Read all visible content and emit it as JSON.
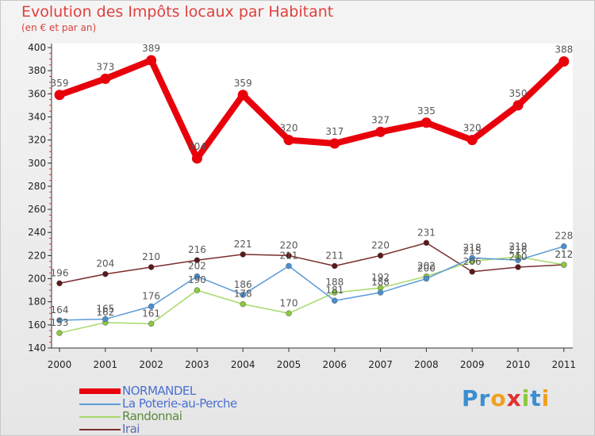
{
  "title": "Evolution des Impôts locaux par Habitant",
  "subtitle": "(en € et par an)",
  "brand": {
    "letters": [
      "P",
      "r",
      "o",
      "x",
      "i",
      "t",
      "i"
    ],
    "colors": [
      "#3a8fd0",
      "#3a8fd0",
      "#f0a020",
      "#e03030",
      "#8cc840",
      "#3a8fd0",
      "#f0a020"
    ]
  },
  "chart_data": {
    "type": "line",
    "title": "Evolution des Impôts locaux par Habitant",
    "subtitle": "(en € et par an)",
    "x": [
      "2000",
      "2001",
      "2002",
      "2003",
      "2004",
      "2005",
      "2006",
      "2007",
      "2008",
      "2009",
      "2010",
      "2011"
    ],
    "ylim": [
      140,
      400
    ],
    "yticks": [
      140,
      160,
      180,
      200,
      220,
      240,
      260,
      280,
      300,
      320,
      340,
      360,
      380,
      400
    ],
    "grid": false,
    "legend_position": "bottom-left",
    "series": [
      {
        "name": "NORMANDEL",
        "color": "#e8000b",
        "marker_color": "#e8000b",
        "values": [
          359,
          373,
          389,
          304,
          359,
          320,
          317,
          327,
          335,
          320,
          350,
          388
        ],
        "labels": [
          "359",
          "373",
          "389",
          "304",
          "359",
          "320",
          "317",
          "327",
          "335",
          "320",
          "350",
          "388"
        ]
      },
      {
        "name": "La Poterie-au-Perche",
        "color": "#5b9bd5",
        "marker_color": "#4a8fd0",
        "values": [
          164,
          165,
          176,
          202,
          186,
          211,
          181,
          188,
          200,
          218,
          216,
          228
        ],
        "labels": [
          "164",
          "165",
          "176",
          "202",
          "186",
          "211",
          "181",
          "188",
          "200",
          "218",
          "216",
          "228"
        ]
      },
      {
        "name": "Randonnai",
        "color": "#a6d96a",
        "marker_color": "#8cc840",
        "values": [
          153,
          162,
          161,
          190,
          178,
          170,
          188,
          192,
          202,
          215,
          219,
          212
        ],
        "labels": [
          "153",
          "162",
          "161",
          "190",
          "178",
          "170",
          "188",
          "192",
          "202",
          "215",
          "219",
          "212"
        ]
      },
      {
        "name": "Irai",
        "color": "#7b2d2d",
        "marker_color": "#5a1a1a",
        "values": [
          196,
          204,
          210,
          216,
          221,
          220,
          211,
          220,
          231,
          206,
          210,
          212
        ],
        "labels": [
          "196",
          "204",
          "210",
          "216",
          "221",
          "220",
          "211",
          "220",
          "231",
          "206",
          "210",
          "212"
        ]
      }
    ]
  }
}
